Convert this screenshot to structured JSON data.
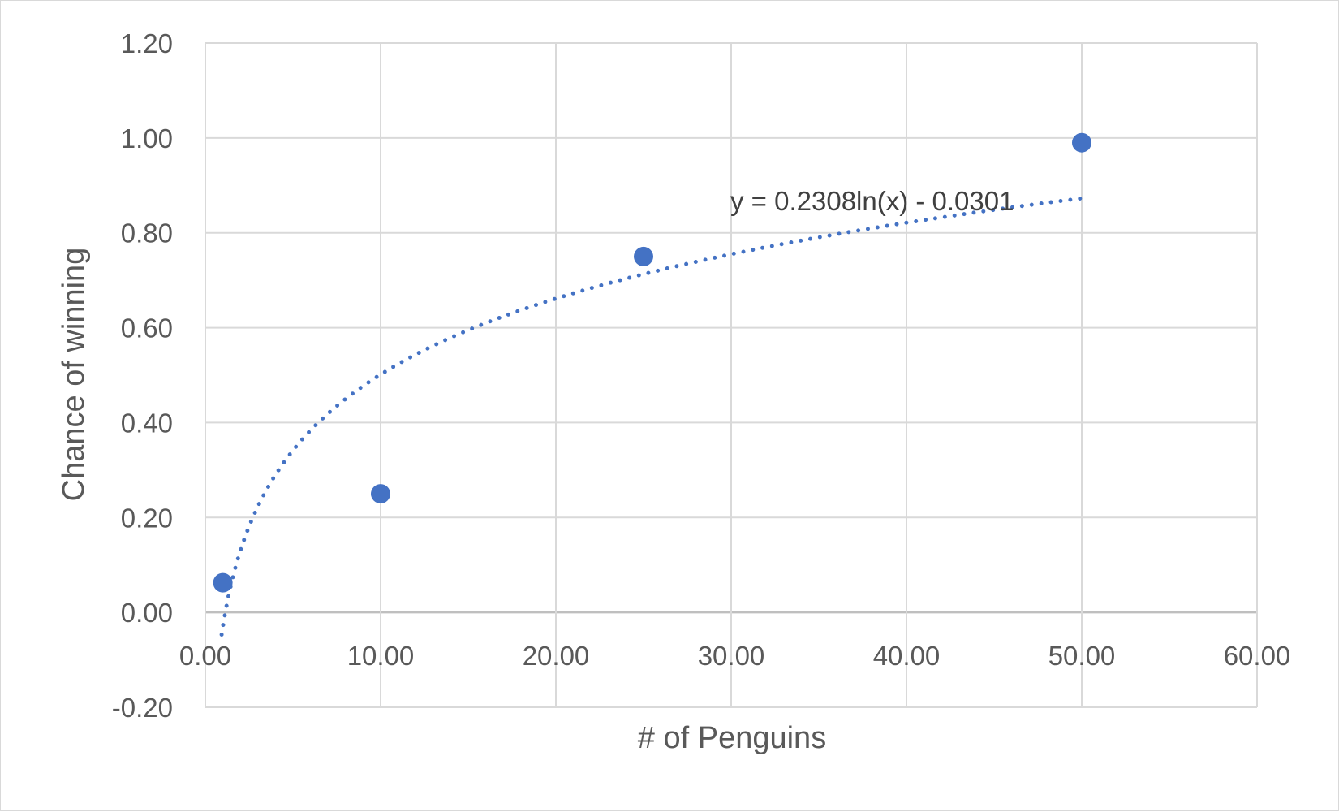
{
  "chart_data": {
    "type": "scatter",
    "xlabel": "# of Penguins",
    "ylabel": "Chance of winning",
    "xlim": [
      0,
      60
    ],
    "ylim": [
      -0.2,
      1.2
    ],
    "x_ticks": [
      "0.00",
      "10.00",
      "20.00",
      "30.00",
      "40.00",
      "50.00",
      "60.00"
    ],
    "y_ticks": [
      "-0.20",
      "0.00",
      "0.20",
      "0.40",
      "0.60",
      "0.80",
      "1.00",
      "1.20"
    ],
    "grid": true,
    "series": [
      {
        "x": [
          1,
          10,
          25,
          50
        ],
        "y": [
          0.0625,
          0.25,
          0.75,
          0.99
        ],
        "color": "#4472c4"
      }
    ],
    "trendline": {
      "type": "logarithmic",
      "a": 0.2308,
      "b": -0.0301,
      "x_range": [
        1,
        50
      ],
      "style": "dotted",
      "color": "#4472c4",
      "equation_label": "y = 0.2308ln(x) - 0.0301"
    }
  }
}
